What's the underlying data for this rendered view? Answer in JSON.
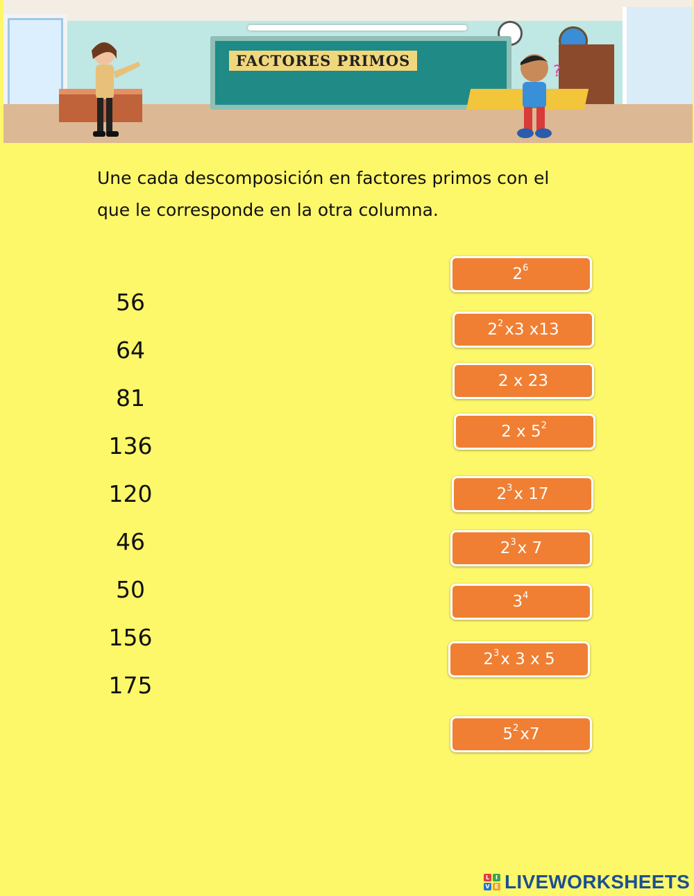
{
  "banner": {
    "title": "FACTORES PRIMOS"
  },
  "instructions": {
    "line1": "Une cada descomposición en factores primos con el",
    "line2": "que le corresponde en la otra columna."
  },
  "numbers": [
    "56",
    "64",
    "81",
    "136",
    "120",
    "46",
    "50",
    "156",
    "175"
  ],
  "answers": [
    {
      "base": "2",
      "exp": "6",
      "rest": ""
    },
    {
      "base": "2",
      "exp": "2",
      "rest": "x3 x13"
    },
    {
      "base": "2 x 23",
      "exp": "",
      "rest": ""
    },
    {
      "base": "2 x 5",
      "exp": "2",
      "rest": ""
    },
    {
      "base": "2",
      "exp": "3",
      "rest": "x 17"
    },
    {
      "base": "2",
      "exp": "3",
      "rest": "x 7"
    },
    {
      "base": "3",
      "exp": "4",
      "rest": ""
    },
    {
      "base": "2",
      "exp": "3",
      "rest": "x 3 x 5"
    },
    {
      "base": "5",
      "exp": "2",
      "rest": "x7"
    }
  ],
  "footer": {
    "logo_text": "LIVEWORKSHEETS",
    "logo_letters": [
      "L",
      "I",
      "V",
      "E"
    ]
  },
  "colors": {
    "background": "#fdf76a",
    "chip": "#f07f33",
    "logo": "#1b4f91"
  }
}
